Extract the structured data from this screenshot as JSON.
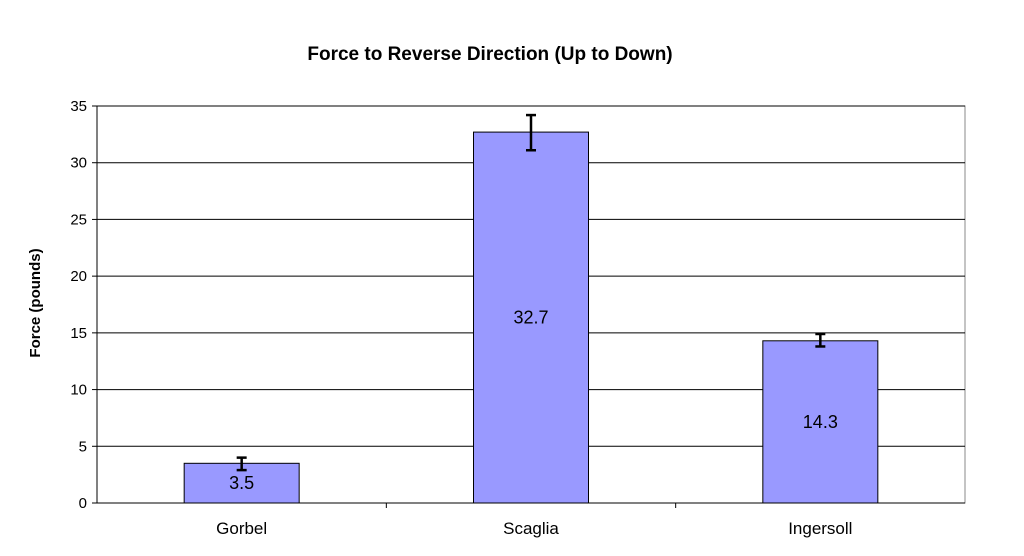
{
  "chart_data": {
    "type": "bar",
    "title": "Force to Reverse Direction (Up to Down)",
    "xlabel": "",
    "ylabel": "Force (pounds)",
    "categories": [
      "Gorbel",
      "Scaglia",
      "Ingersoll"
    ],
    "values": [
      3.5,
      32.7,
      14.3
    ],
    "data_labels": [
      "3.5",
      "32.7",
      "14.3"
    ],
    "error_bars": [
      {
        "low": 2.9,
        "high": 4.0
      },
      {
        "low": 31.1,
        "high": 34.2
      },
      {
        "low": 13.8,
        "high": 14.9
      }
    ],
    "ylim": [
      0,
      35
    ],
    "yticks": [
      0,
      5,
      10,
      15,
      20,
      25,
      30,
      35
    ],
    "grid": true,
    "legend": "none",
    "bar_color": "#9999ff",
    "bar_edge_color": "#000000"
  }
}
